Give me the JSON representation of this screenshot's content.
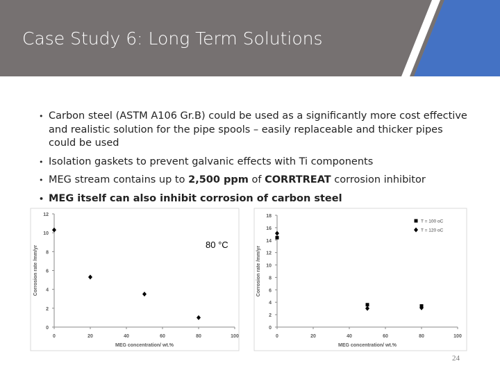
{
  "header": {
    "title": "Case Study 6: Long Term Solutions"
  },
  "bullets": [
    "Carbon steel (ASTM A106 Gr.B) could be used as a significantly more cost effective and realistic solution for the pipe spools – easily replaceable and thicker pipes could be used",
    "Isolation gaskets to prevent galvanic effects with Ti components",
    [
      "MEG stream contains up to ",
      "2,500 ppm",
      " of ",
      "CORRTREAT",
      " corrosion inhibitor"
    ],
    "MEG itself can also inhibit corrosion of carbon steel"
  ],
  "page_number": "24",
  "chart_data": [
    {
      "type": "scatter",
      "x": [
        0,
        20,
        50,
        80
      ],
      "values": [
        10.3,
        5.3,
        3.5,
        1.0
      ],
      "color": "#000000",
      "marker": "diamond",
      "x_label": "MEG concentration/ wt.%",
      "y_label": "Corrosion rate /mm/yr",
      "annotation": "80 °C",
      "xlim": [
        0,
        100
      ],
      "xticks": [
        0,
        20,
        40,
        60,
        80,
        100
      ],
      "ylim": [
        0,
        12
      ],
      "yticks": [
        0,
        2,
        4,
        6,
        8,
        10,
        12
      ]
    },
    {
      "type": "scatter",
      "x": [
        0,
        50,
        80
      ],
      "series": [
        {
          "name": "T = 100 oC",
          "color": "#000000",
          "marker": "square",
          "values": [
            14.4,
            3.6,
            3.4
          ]
        },
        {
          "name": "T = 120 oC",
          "color": "#000000",
          "marker": "diamond",
          "values": [
            15.1,
            3.0,
            3.1
          ]
        }
      ],
      "x_label": "MEG concentration/ wt.%",
      "y_label": "Corrosion rate /mm/yr",
      "legend": "top-right",
      "xlim": [
        0,
        100
      ],
      "xticks": [
        0,
        20,
        40,
        60,
        80,
        100
      ],
      "ylim": [
        0,
        18
      ],
      "yticks": [
        0,
        2,
        4,
        6,
        8,
        10,
        12,
        14,
        16,
        18
      ]
    }
  ]
}
